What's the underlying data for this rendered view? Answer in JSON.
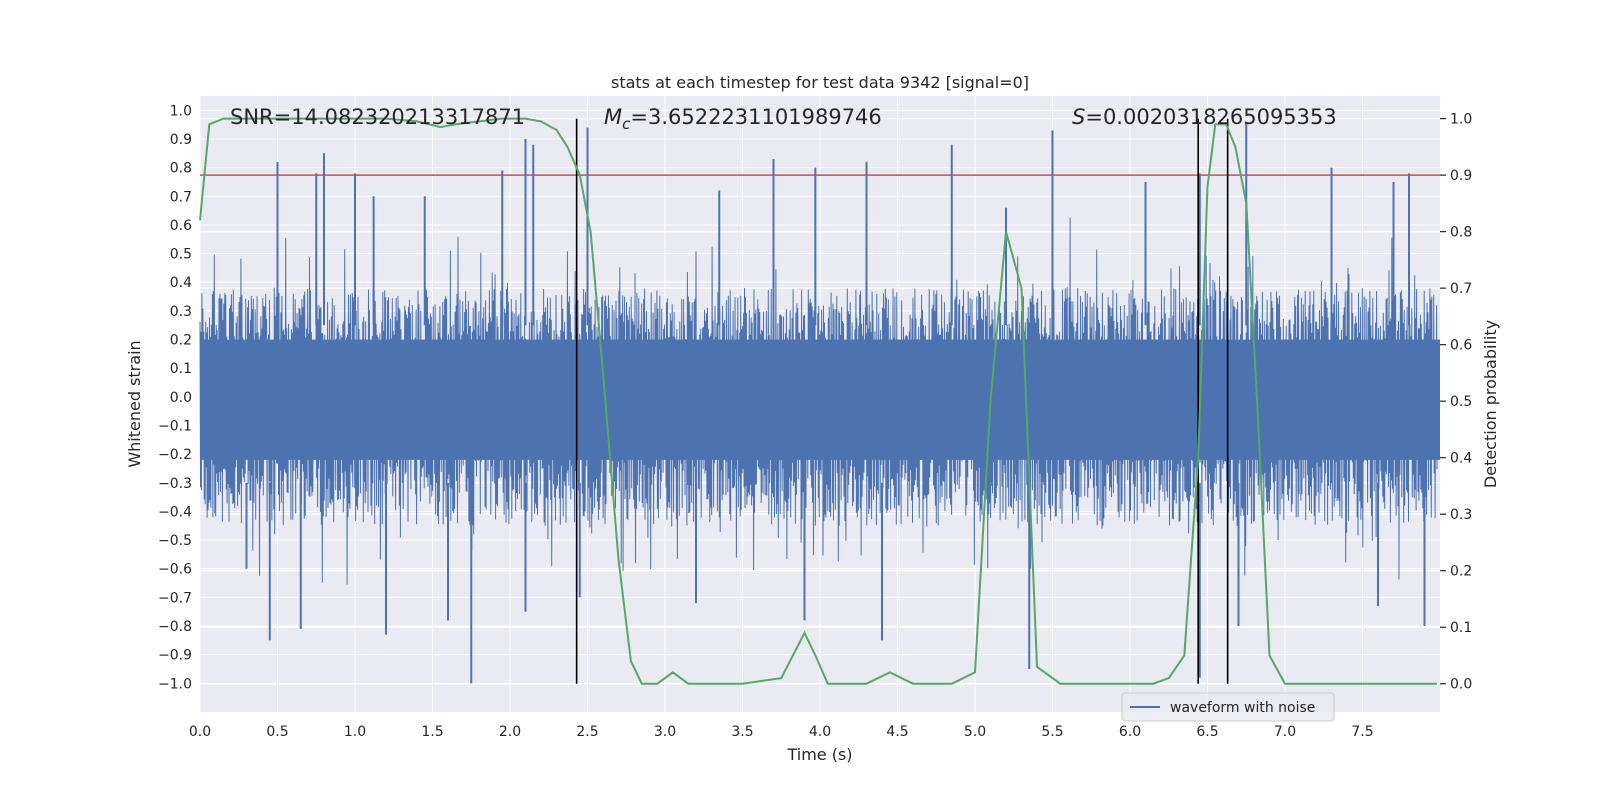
{
  "chart_data": {
    "type": "line",
    "title": "stats at each timestep for test data 9342 [signal=0]",
    "xlabel": "Time (s)",
    "ylabel": "Whitened strain",
    "ylabel_right": "Detection probability",
    "xlim": [
      0,
      8
    ],
    "ylim": [
      -1.1,
      1.05
    ],
    "ylim_right": [
      -0.05,
      1.04
    ],
    "x_ticks": [
      "0.0",
      "0.5",
      "1.0",
      "1.5",
      "2.0",
      "2.5",
      "3.0",
      "3.5",
      "4.0",
      "4.5",
      "5.0",
      "5.5",
      "6.0",
      "6.5",
      "7.0",
      "7.5"
    ],
    "y_ticks": [
      "1.0",
      "0.9",
      "0.8",
      "0.7",
      "0.6",
      "0.5",
      "0.4",
      "0.3",
      "0.2",
      "0.1",
      "0.0",
      "-0.1",
      "-0.2",
      "-0.3",
      "-0.4",
      "-0.5",
      "-0.6",
      "-0.7",
      "-0.8",
      "-0.9",
      "-1.0"
    ],
    "y_ticks_right": [
      "1.0",
      "0.9",
      "0.8",
      "0.7",
      "0.6",
      "0.5",
      "0.4",
      "0.3",
      "0.2",
      "0.1",
      "0.0"
    ],
    "grid": true,
    "legend_position": "lower-right",
    "annotations": {
      "snr": "SNR=14.082320213317871",
      "mc_symbol": "M",
      "mc_sub": "c",
      "mc_value": "=3.6522231101989746",
      "s_symbol": "S",
      "s_value": "=0.0020318265095353"
    },
    "threshold": {
      "name": "",
      "value": 0.9,
      "axis": "right",
      "color": "#c44e52"
    },
    "vertical_lines": [
      2.43,
      6.44,
      6.63
    ],
    "series": [
      {
        "name": "waveform with noise",
        "axis": "left",
        "color": "#4c72b0",
        "style": "noise",
        "band_upper": 0.38,
        "band_lower": -0.45,
        "spikes_up": [
          [
            0.5,
            0.82
          ],
          [
            0.8,
            0.85
          ],
          [
            0.75,
            0.78
          ],
          [
            1.0,
            0.78
          ],
          [
            1.12,
            0.7
          ],
          [
            1.45,
            0.7
          ],
          [
            1.95,
            0.79
          ],
          [
            2.1,
            0.9
          ],
          [
            2.15,
            0.88
          ],
          [
            2.5,
            0.94
          ],
          [
            3.35,
            0.72
          ],
          [
            3.7,
            0.83
          ],
          [
            3.97,
            0.8
          ],
          [
            4.3,
            0.82
          ],
          [
            4.85,
            0.88
          ],
          [
            5.5,
            0.93
          ],
          [
            6.45,
            0.78
          ],
          [
            6.75,
            0.96
          ],
          [
            7.3,
            0.8
          ],
          [
            7.7,
            0.75
          ],
          [
            7.8,
            0.78
          ],
          [
            5.2,
            0.66
          ],
          [
            6.1,
            0.75
          ]
        ],
        "spikes_down": [
          [
            0.45,
            -0.85
          ],
          [
            0.65,
            -0.81
          ],
          [
            1.2,
            -0.83
          ],
          [
            1.6,
            -0.78
          ],
          [
            1.75,
            -1.0
          ],
          [
            2.1,
            -0.75
          ],
          [
            2.45,
            -0.7
          ],
          [
            3.2,
            -0.72
          ],
          [
            3.9,
            -0.78
          ],
          [
            4.4,
            -0.85
          ],
          [
            5.35,
            -0.95
          ],
          [
            6.45,
            -0.98
          ],
          [
            6.7,
            -0.8
          ],
          [
            7.6,
            -0.73
          ],
          [
            7.9,
            -0.8
          ],
          [
            0.3,
            -0.6
          ]
        ]
      },
      {
        "name": "",
        "axis": "right",
        "color": "#55a868",
        "style": "line",
        "x": [
          0.0,
          0.06,
          0.15,
          0.3,
          0.5,
          0.8,
          1.0,
          1.2,
          1.4,
          1.55,
          1.65,
          1.8,
          1.95,
          2.1,
          2.2,
          2.3,
          2.37,
          2.45,
          2.52,
          2.6,
          2.7,
          2.78,
          2.85,
          2.95,
          3.05,
          3.15,
          3.25,
          3.5,
          3.75,
          3.9,
          3.97,
          4.05,
          4.15,
          4.3,
          4.45,
          4.6,
          4.85,
          5.0,
          5.1,
          5.2,
          5.3,
          5.4,
          5.55,
          5.7,
          5.85,
          6.0,
          6.15,
          6.25,
          6.35,
          6.44,
          6.5,
          6.55,
          6.62,
          6.68,
          6.75,
          6.82,
          6.9,
          7.0,
          7.3,
          7.6,
          7.98
        ],
        "y": [
          0.82,
          0.99,
          1.0,
          1.0,
          1.0,
          1.0,
          1.0,
          1.0,
          0.995,
          0.985,
          0.99,
          0.995,
          1.0,
          1.0,
          0.995,
          0.98,
          0.95,
          0.9,
          0.8,
          0.55,
          0.22,
          0.04,
          0.0,
          0.0,
          0.02,
          0.0,
          0.0,
          0.0,
          0.01,
          0.09,
          0.05,
          0.0,
          0.0,
          0.0,
          0.02,
          0.0,
          0.0,
          0.02,
          0.5,
          0.8,
          0.7,
          0.03,
          0.0,
          0.0,
          0.0,
          0.0,
          0.0,
          0.01,
          0.05,
          0.4,
          0.88,
          0.99,
          0.99,
          0.95,
          0.85,
          0.5,
          0.05,
          0.0,
          0.0,
          0.0,
          0.0
        ]
      }
    ]
  }
}
